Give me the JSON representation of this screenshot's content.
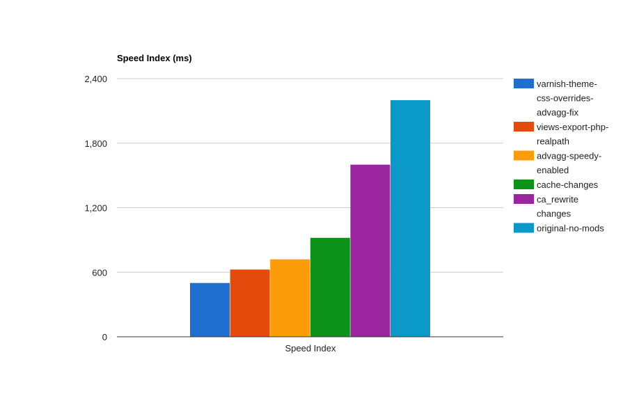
{
  "chart_data": {
    "type": "bar",
    "title": "Speed Index (ms)",
    "categories": [
      "Speed Index"
    ],
    "ylim": [
      0,
      2400
    ],
    "yticks": [
      0,
      600,
      1200,
      1800,
      2400
    ],
    "ytick_labels": [
      "0",
      "600",
      "1,200",
      "1,800",
      "2,400"
    ],
    "grid": true,
    "legend_position": "right",
    "series": [
      {
        "name": "varnish-theme-css-overrides-advagg-fix",
        "legend_lines": [
          "varnish-theme-",
          "css-overrides-",
          "advagg-fix"
        ],
        "color": "#1f6fd1",
        "values": [
          500
        ]
      },
      {
        "name": "views-export-php-realpath",
        "legend_lines": [
          "views-export-php-",
          "realpath"
        ],
        "color": "#e34a0c",
        "values": [
          625
        ]
      },
      {
        "name": "advagg-speedy-enabled",
        "legend_lines": [
          "advagg-speedy-",
          "enabled"
        ],
        "color": "#fb9c08",
        "values": [
          720
        ]
      },
      {
        "name": "cache-changes",
        "legend_lines": [
          "cache-changes"
        ],
        "color": "#0d931a",
        "values": [
          920
        ]
      },
      {
        "name": "ca_rewrite changes",
        "legend_lines": [
          "ca_rewrite",
          "changes"
        ],
        "color": "#9a259e",
        "values": [
          1600
        ]
      },
      {
        "name": "original-no-mods",
        "legend_lines": [
          "original-no-mods"
        ],
        "color": "#0a99c8",
        "values": [
          2200
        ]
      }
    ]
  }
}
